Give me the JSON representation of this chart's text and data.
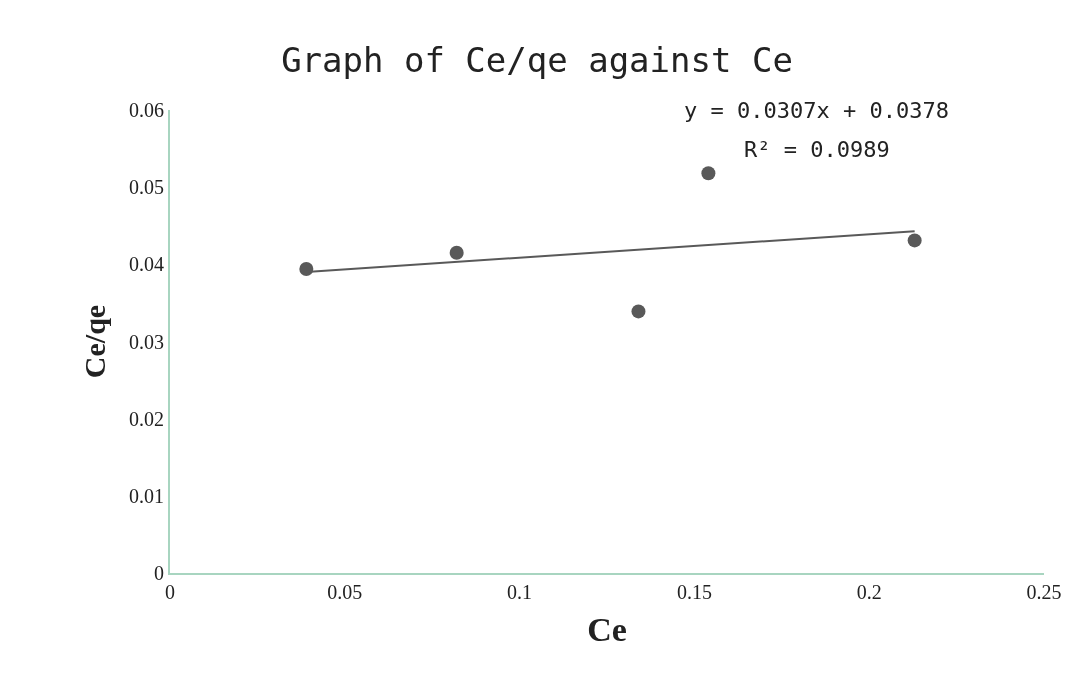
{
  "chart_data": {
    "type": "scatter",
    "title": "Graph of Ce/qe against Ce",
    "xlabel": "Ce",
    "ylabel": "Ce/qe",
    "x": [
      0.039,
      0.082,
      0.134,
      0.154,
      0.213
    ],
    "series": [
      {
        "color": "#595959",
        "marker": "circle",
        "values": [
          0.0394,
          0.0415,
          0.0339,
          0.0518,
          0.0431
        ]
      },
      {
        "type": "line",
        "color": "#595959",
        "x": [
          0.039,
          0.213
        ],
        "values": [
          0.039,
          0.0443
        ],
        "line_style": "solid"
      }
    ],
    "annotations": [
      "y = 0.0307x + 0.0378",
      "R² = 0.0989"
    ],
    "xlim": [
      0,
      0.25
    ],
    "xticks": [
      0,
      0.05,
      0.1,
      0.15,
      0.2,
      0.25
    ],
    "ylim": [
      0,
      0.06
    ],
    "yticks": [
      0,
      0.01,
      0.02,
      0.03,
      0.04,
      0.05,
      0.06
    ]
  }
}
